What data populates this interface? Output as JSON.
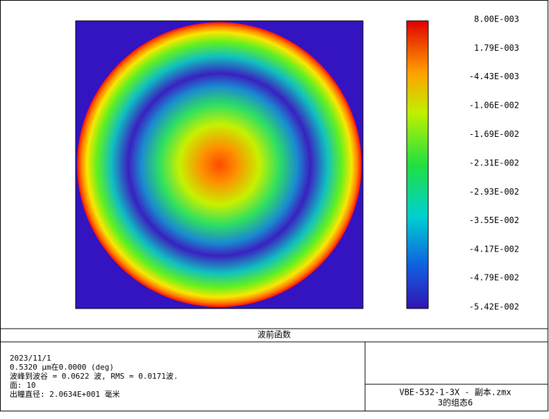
{
  "chart_data": {
    "type": "wavefront-map",
    "title": "波前函数",
    "clim": [
      -0.0542,
      0.008
    ],
    "colorbar_ticks": [
      {
        "value": 0.008,
        "label": "8.00E-003"
      },
      {
        "value": 0.00179,
        "label": "1.79E-003"
      },
      {
        "value": -0.00443,
        "label": "-4.43E-003"
      },
      {
        "value": -0.0106,
        "label": "-1.06E-002"
      },
      {
        "value": -0.0169,
        "label": "-1.69E-002"
      },
      {
        "value": -0.0231,
        "label": "-2.31E-002"
      },
      {
        "value": -0.0293,
        "label": "-2.93E-002"
      },
      {
        "value": -0.0355,
        "label": "-3.55E-002"
      },
      {
        "value": -0.0417,
        "label": "-4.17E-002"
      },
      {
        "value": -0.0479,
        "label": "-4.79E-002"
      },
      {
        "value": -0.0542,
        "label": "-5.42E-002"
      }
    ],
    "info": [
      "2023/11/1",
      "0.5320 µm在0.0000 (deg)",
      "波峰到波谷 = 0.0622 波, RMS = 0.0171波.",
      "面: 10",
      "出瞳直径: 2.0634E+001 毫米"
    ],
    "file": "VBE-532-1-3X - 副本.zmx",
    "config": "3的组态6"
  }
}
